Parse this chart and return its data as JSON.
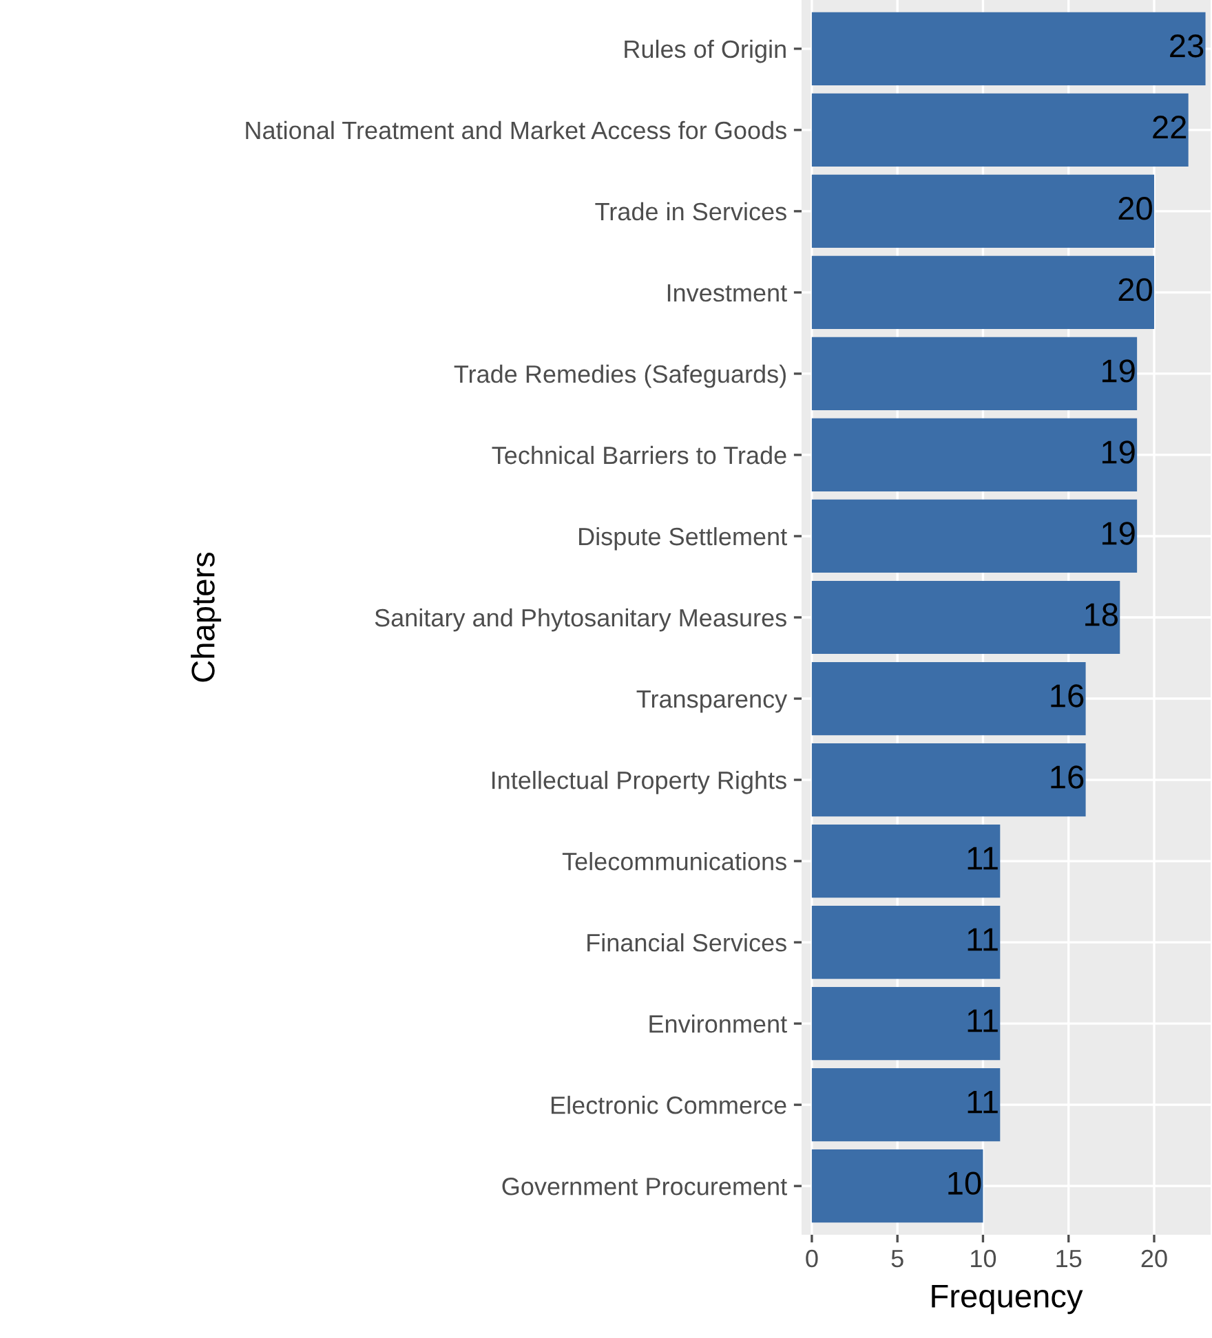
{
  "chart_data": {
    "type": "bar",
    "orientation": "horizontal",
    "xlabel": "Frequency",
    "ylabel": "Chapters",
    "categories": [
      "Rules of Origin",
      "National Treatment and Market Access for Goods",
      "Trade in Services",
      "Investment",
      "Trade Remedies (Safeguards)",
      "Technical Barriers to Trade",
      "Dispute Settlement",
      "Sanitary and Phytosanitary Measures",
      "Transparency",
      "Intellectual Property Rights",
      "Telecommunications",
      "Financial Services",
      "Environment",
      "Electronic Commerce",
      "Government Procurement"
    ],
    "values": [
      23,
      22,
      20,
      20,
      19,
      19,
      19,
      18,
      16,
      16,
      11,
      11,
      11,
      11,
      10
    ],
    "color": "#3c6ea8",
    "data_labels": true,
    "xlim": [
      -0.6,
      23.3
    ],
    "xticks": [
      0,
      5,
      10,
      15,
      20
    ],
    "grid": true
  }
}
